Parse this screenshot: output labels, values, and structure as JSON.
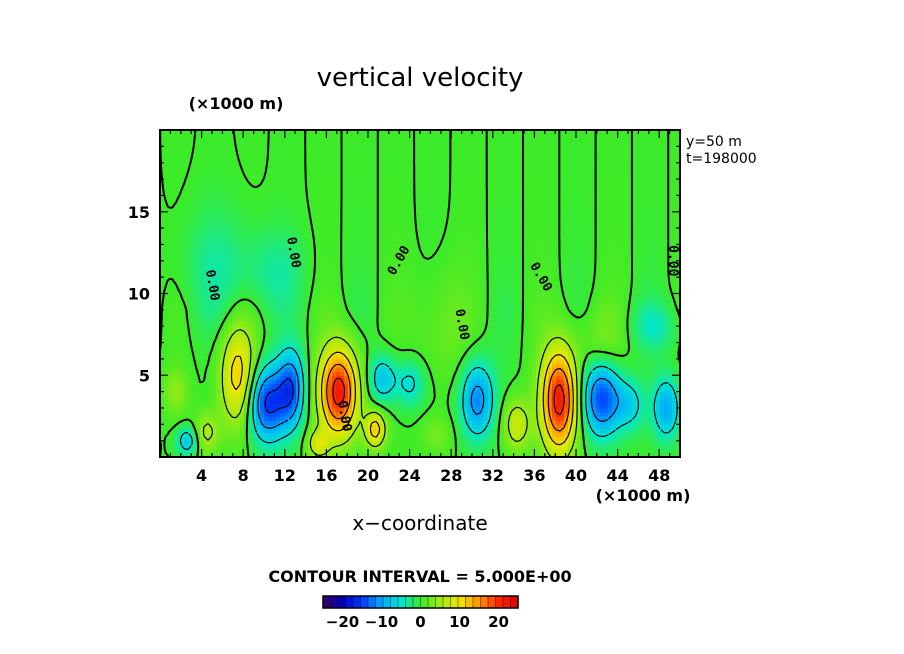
{
  "chart_data": {
    "type": "heatmap",
    "title": "vertical velocity",
    "xlabel": "x−coordinate",
    "x_unit": "(×1000 m)",
    "y_unit": "(×1000 m)",
    "xlim": [
      0,
      50
    ],
    "ylim": [
      0,
      20
    ],
    "x_ticks": [
      4,
      8,
      12,
      16,
      20,
      24,
      28,
      32,
      36,
      40,
      44,
      48
    ],
    "y_ticks": [
      5,
      10,
      15
    ],
    "annotations": [
      "y=50 m",
      "t=198000"
    ],
    "contour_interval_text": "CONTOUR INTERVAL = 5.000E+00",
    "contour_label": "0.00",
    "colorbar_ticks": [
      -20,
      -10,
      0,
      10,
      20
    ],
    "colorbar_tick_labels": [
      "−20",
      "−10",
      "0",
      "10",
      "20"
    ],
    "colorbar_range": [
      -25,
      25
    ],
    "features": [
      {
        "x": 7.5,
        "y": 5.0,
        "value": 12,
        "sx": 1.2,
        "sy": 2.2
      },
      {
        "x": 10.3,
        "y": 3.3,
        "value": -16,
        "sx": 1.3,
        "sy": 1.6
      },
      {
        "x": 12.6,
        "y": 4.2,
        "value": -13,
        "sx": 0.9,
        "sy": 1.6
      },
      {
        "x": 17.2,
        "y": 4.0,
        "value": 22,
        "sx": 1.3,
        "sy": 1.9
      },
      {
        "x": 20.7,
        "y": 1.7,
        "value": 12,
        "sx": 0.7,
        "sy": 0.8
      },
      {
        "x": 21.4,
        "y": 4.8,
        "value": -8,
        "sx": 0.9,
        "sy": 1.0
      },
      {
        "x": 24.0,
        "y": 4.5,
        "value": -6,
        "sx": 1.0,
        "sy": 1.0
      },
      {
        "x": 30.5,
        "y": 3.5,
        "value": -12,
        "sx": 1.1,
        "sy": 1.6
      },
      {
        "x": 34.3,
        "y": 2.0,
        "value": 8,
        "sx": 0.9,
        "sy": 1.1
      },
      {
        "x": 38.4,
        "y": 3.5,
        "value": 22,
        "sx": 1.2,
        "sy": 2.2
      },
      {
        "x": 42.5,
        "y": 3.6,
        "value": -15,
        "sx": 1.3,
        "sy": 1.6
      },
      {
        "x": 45.2,
        "y": 3.2,
        "value": -6,
        "sx": 1.0,
        "sy": 1.1
      },
      {
        "x": 48.7,
        "y": 3.0,
        "value": -10,
        "sx": 0.9,
        "sy": 1.3
      },
      {
        "x": 1.5,
        "y": 4.0,
        "value": 4,
        "sx": 0.8,
        "sy": 1.0
      },
      {
        "x": 2.6,
        "y": 1.0,
        "value": -8,
        "sx": 0.7,
        "sy": 0.6
      },
      {
        "x": 4.5,
        "y": 1.5,
        "value": 6,
        "sx": 0.8,
        "sy": 0.9
      },
      {
        "x": 15.2,
        "y": 0.8,
        "value": 8,
        "sx": 0.7,
        "sy": 0.6
      },
      {
        "x": 26.6,
        "y": 1.4,
        "value": 3,
        "sx": 1.0,
        "sy": 0.8
      },
      {
        "x": 5.5,
        "y": 11.5,
        "value": -3,
        "sx": 2.5,
        "sy": 2.5
      },
      {
        "x": 11.0,
        "y": 11.3,
        "value": -3,
        "sx": 2.0,
        "sy": 1.8
      },
      {
        "x": 27.0,
        "y": 8.0,
        "value": 2.5,
        "sx": 1.8,
        "sy": 2.5
      },
      {
        "x": 42.5,
        "y": 7.0,
        "value": 3,
        "sx": 1.5,
        "sy": 1.5
      },
      {
        "x": 47.5,
        "y": 8.0,
        "value": -4,
        "sx": 1.5,
        "sy": 1.0
      }
    ],
    "zero_contour_labels": [
      {
        "x": 5.0,
        "y": 10.5,
        "rotate": 80
      },
      {
        "x": 12.8,
        "y": 12.5,
        "rotate": 80
      },
      {
        "x": 23.0,
        "y": 12.0,
        "rotate": -60
      },
      {
        "x": 29.0,
        "y": 8.1,
        "rotate": 80
      },
      {
        "x": 36.6,
        "y": 11.0,
        "rotate": 60
      },
      {
        "x": 49.3,
        "y": 12.0,
        "rotate": 90
      },
      {
        "x": 17.7,
        "y": 2.5,
        "rotate": 80
      }
    ]
  }
}
